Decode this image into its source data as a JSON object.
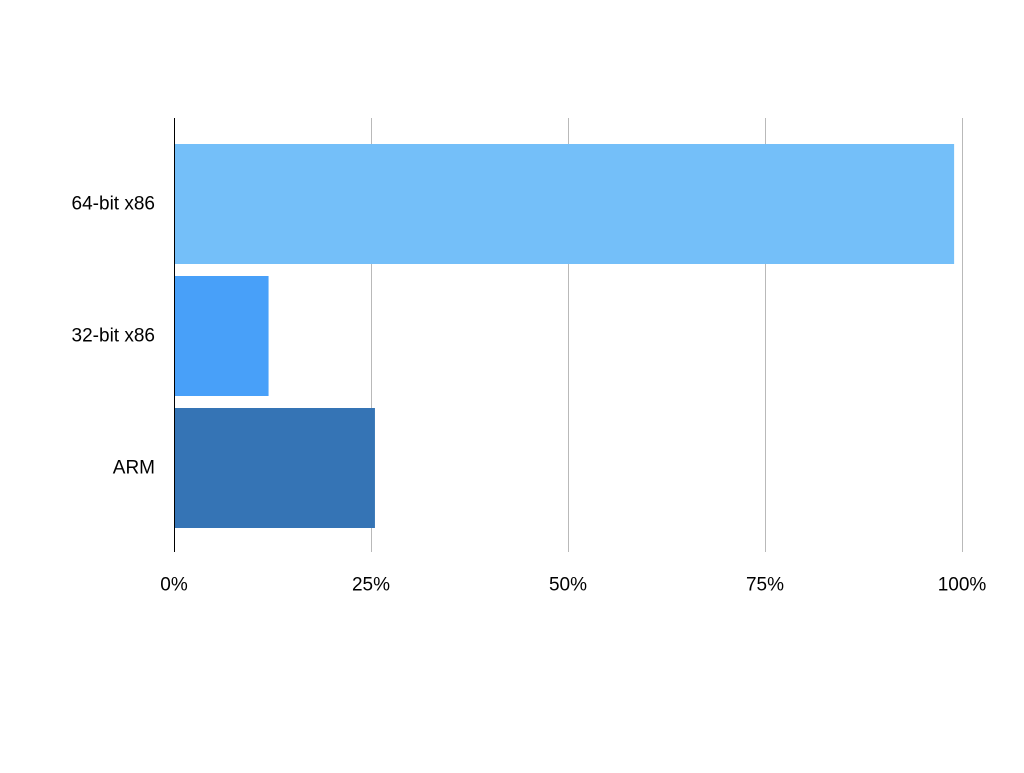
{
  "chart_data": {
    "type": "bar",
    "orientation": "horizontal",
    "title": "",
    "xlabel": "",
    "ylabel": "",
    "categories": [
      "64-bit x86",
      "32-bit x86",
      "ARM"
    ],
    "values": [
      99,
      12,
      25.5
    ],
    "value_unit": "%",
    "xlim": [
      0,
      100
    ],
    "x_ticks": [
      0,
      25,
      50,
      75,
      100
    ],
    "x_tick_labels": [
      "0%",
      "25%",
      "50%",
      "75%",
      "100%"
    ],
    "grid": "vertical",
    "legend": "none",
    "colors": [
      "#74bff9",
      "#48a0f9",
      "#3574b5"
    ]
  }
}
